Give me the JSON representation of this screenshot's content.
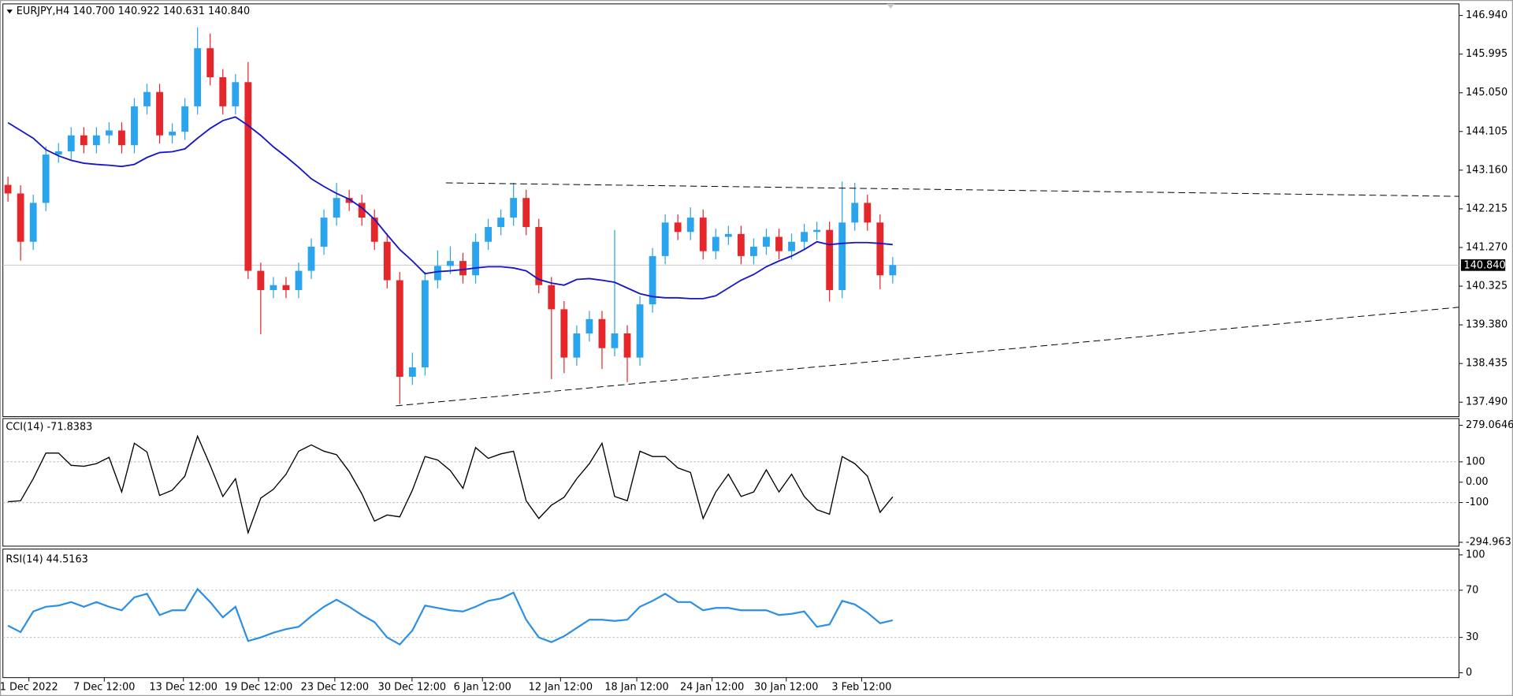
{
  "chart_data": [
    {
      "type": "candlestick",
      "title": "EURJPY,H4  140.700 140.922 140.631 140.840",
      "open": [
        142.8,
        142.59,
        141.41,
        142.36,
        143.54,
        143.62,
        144.01,
        143.77,
        144.01,
        144.13,
        143.77,
        144.72,
        145.07,
        144.01,
        144.1,
        144.72,
        146.14,
        145.43,
        144.72,
        145.31,
        140.7,
        140.23,
        140.35,
        140.23,
        140.7,
        141.29,
        142.0,
        142.48,
        142.36,
        142.0,
        141.41,
        140.47,
        138.11,
        138.34,
        140.47,
        140.82,
        140.94,
        140.59,
        141.41,
        141.77,
        142.0,
        142.48,
        141.77,
        140.35,
        139.76,
        138.58,
        139.17,
        139.52,
        138.81,
        139.17,
        138.58,
        139.88,
        141.06,
        141.88,
        141.65,
        142.0,
        141.18,
        141.53,
        141.6,
        141.06,
        141.29,
        141.53,
        141.18,
        141.41,
        141.65,
        141.7,
        140.23,
        141.88,
        142.36,
        141.88,
        140.59
      ],
      "high": [
        143.0,
        142.79,
        142.56,
        143.74,
        143.82,
        144.21,
        144.21,
        144.21,
        144.33,
        144.33,
        144.92,
        145.27,
        145.27,
        144.3,
        144.92,
        146.65,
        146.5,
        145.63,
        145.51,
        145.8,
        140.9,
        140.55,
        140.55,
        140.9,
        141.49,
        142.2,
        142.85,
        142.68,
        142.56,
        142.2,
        141.61,
        140.67,
        138.7,
        140.67,
        141.2,
        141.3,
        141.14,
        141.61,
        141.97,
        142.2,
        142.85,
        142.68,
        141.97,
        140.55,
        139.96,
        139.37,
        139.72,
        139.72,
        141.7,
        139.37,
        140.08,
        141.26,
        142.08,
        142.08,
        142.25,
        142.2,
        141.73,
        141.8,
        141.8,
        141.49,
        141.73,
        141.73,
        141.61,
        141.85,
        141.9,
        141.9,
        142.88,
        142.85,
        142.56,
        142.08,
        141.04
      ],
      "low": [
        142.39,
        140.95,
        141.21,
        142.16,
        143.34,
        143.42,
        143.57,
        143.57,
        143.81,
        143.57,
        143.57,
        144.52,
        143.81,
        143.81,
        143.9,
        144.52,
        145.23,
        144.52,
        144.52,
        140.5,
        139.15,
        140.03,
        140.03,
        140.03,
        140.5,
        141.09,
        141.8,
        142.16,
        141.8,
        141.21,
        140.27,
        137.44,
        137.91,
        138.14,
        140.27,
        140.62,
        140.39,
        140.39,
        141.21,
        141.57,
        141.8,
        141.57,
        140.15,
        138.05,
        138.2,
        138.38,
        138.97,
        138.3,
        138.61,
        137.98,
        138.38,
        139.68,
        140.86,
        141.45,
        141.45,
        140.98,
        140.98,
        141.33,
        140.86,
        140.86,
        141.09,
        140.98,
        140.98,
        141.21,
        141.45,
        139.95,
        140.03,
        141.68,
        141.68,
        140.25,
        140.39
      ],
      "close": [
        142.59,
        141.41,
        142.36,
        143.54,
        143.62,
        144.01,
        143.77,
        144.01,
        144.13,
        143.77,
        144.72,
        145.07,
        144.01,
        144.1,
        144.72,
        146.14,
        145.43,
        144.72,
        145.31,
        140.7,
        140.23,
        140.35,
        140.23,
        140.7,
        141.29,
        142.0,
        142.48,
        142.36,
        142.0,
        141.41,
        140.47,
        138.11,
        138.34,
        140.47,
        140.82,
        140.94,
        140.59,
        141.41,
        141.77,
        142.0,
        142.48,
        141.77,
        140.35,
        139.76,
        138.58,
        139.17,
        139.52,
        138.81,
        139.17,
        138.58,
        139.88,
        141.06,
        141.88,
        141.65,
        142.0,
        141.18,
        141.53,
        141.6,
        141.06,
        141.29,
        141.53,
        141.18,
        141.41,
        141.65,
        141.7,
        140.23,
        141.88,
        142.36,
        141.88,
        140.59,
        140.84
      ],
      "colors": {
        "up": "#2aa4ec",
        "down": "#e5262b"
      },
      "ma": {
        "color": "#1616c8",
        "values": [
          144.32,
          144.13,
          143.94,
          143.66,
          143.51,
          143.4,
          143.33,
          143.3,
          143.28,
          143.25,
          143.3,
          143.47,
          143.59,
          143.61,
          143.68,
          143.94,
          144.18,
          144.37,
          144.46,
          144.25,
          144.01,
          143.73,
          143.49,
          143.23,
          142.95,
          142.76,
          142.59,
          142.45,
          142.24,
          141.96,
          141.58,
          141.22,
          140.94,
          140.63,
          140.68,
          140.7,
          140.73,
          140.77,
          140.8,
          140.8,
          140.77,
          140.7,
          140.49,
          140.4,
          140.35,
          140.49,
          140.51,
          140.47,
          140.42,
          140.28,
          140.14,
          140.07,
          140.04,
          140.04,
          140.02,
          140.02,
          140.09,
          140.28,
          140.47,
          140.61,
          140.8,
          140.94,
          141.06,
          141.22,
          141.41,
          141.34,
          141.37,
          141.39,
          141.39,
          141.37,
          141.34
        ]
      },
      "trendlines": [
        {
          "x": [
            34.66,
            114.8
          ],
          "y": [
            142.85,
            142.52
          ]
        },
        {
          "x": [
            30.69,
            114.8
          ],
          "y": [
            137.4,
            139.81
          ]
        }
      ],
      "current_price": {
        "value": 140.84,
        "label": "140.840"
      },
      "xlim": [
        -0.4,
        114.8
      ],
      "xticks": [
        {
          "value": 1.66,
          "label": "1 Dec 2022"
        },
        {
          "value": 7.62,
          "label": "7 Dec 12:00"
        },
        {
          "value": 13.88,
          "label": "13 Dec 12:00"
        },
        {
          "value": 19.83,
          "label": "19 Dec 12:00"
        },
        {
          "value": 25.86,
          "label": "23 Dec 12:00"
        },
        {
          "value": 31.97,
          "label": "30 Dec 12:00"
        },
        {
          "value": 37.54,
          "label": "6 Jan 12:00"
        },
        {
          "value": 43.72,
          "label": "12 Jan 12:00"
        },
        {
          "value": 49.75,
          "label": "18 Jan 12:00"
        },
        {
          "value": 55.71,
          "label": "24 Jan 12:00"
        },
        {
          "value": 61.58,
          "label": "30 Jan 12:00"
        },
        {
          "value": 67.54,
          "label": "3 Feb 12:00"
        }
      ],
      "ylim": [
        137.16,
        147.2
      ],
      "yticks": [
        {
          "value": 146.94,
          "label": "146.940"
        },
        145.995,
        {
          "value": 145.05,
          "label": "145.050"
        },
        144.105,
        {
          "value": 143.16,
          "label": "143.160"
        },
        142.215,
        {
          "value": 141.27,
          "label": "141.270"
        },
        140.325,
        {
          "value": 139.38,
          "label": "139.380"
        },
        138.435,
        {
          "value": 137.49,
          "label": "137.490"
        }
      ]
    },
    {
      "type": "line",
      "title": "CCI(14) -71.8383",
      "color": "#000000",
      "values": [
        -96,
        -91,
        17,
        143,
        143,
        83,
        78,
        91,
        122,
        -48,
        191,
        148,
        -65,
        -39,
        30,
        226,
        83,
        -70,
        17,
        -248,
        -78,
        -35,
        39,
        152,
        183,
        152,
        135,
        52,
        -57,
        -191,
        -161,
        -170,
        -39,
        126,
        109,
        57,
        -30,
        170,
        117,
        139,
        152,
        -91,
        -178,
        -113,
        -74,
        17,
        91,
        191,
        -70,
        -91,
        152,
        126,
        126,
        70,
        48,
        -178,
        -48,
        39,
        -70,
        -48,
        61,
        -48,
        39,
        -70,
        -135,
        -157,
        126,
        91,
        30,
        -148,
        -72
      ],
      "ylim": [
        -294.963,
        279.0646
      ],
      "yticks": [
        279.0646,
        100,
        {
          "value": 0,
          "label": "0.00"
        },
        -100,
        -294.963
      ],
      "levels": [
        100,
        -100
      ]
    },
    {
      "type": "line",
      "title": "RSI(14) 44.5163",
      "color": "#2b8fe3",
      "values": [
        40,
        34.5,
        52,
        56,
        57,
        60,
        56,
        60,
        56,
        53,
        64,
        67,
        49,
        53,
        53,
        71,
        60,
        47,
        56,
        27,
        30,
        34,
        37,
        39,
        48,
        56,
        62,
        56,
        49,
        43,
        30,
        24,
        36,
        57,
        55,
        53,
        52,
        56,
        61,
        63,
        68,
        45,
        30,
        26,
        31,
        38,
        45,
        45,
        44,
        45,
        56,
        61,
        67,
        60,
        60,
        53,
        55,
        55,
        53,
        53,
        53,
        49,
        50,
        52,
        39,
        41,
        61,
        58,
        51,
        42,
        44.5
      ],
      "ylim": [
        0,
        100
      ],
      "yticks": [
        100,
        70,
        30,
        0
      ],
      "levels": [
        70,
        30
      ]
    }
  ]
}
